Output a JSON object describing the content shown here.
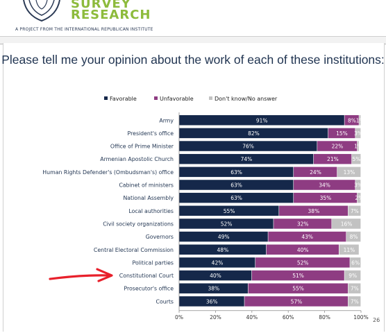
{
  "header": {
    "logo_line1": "SURVEY",
    "logo_line2": "RESEARCH",
    "subtitle": "A PROJECT FROM THE INTERNATIONAL REPUBLICAN INSTITUTE"
  },
  "page_number": "26",
  "colors": {
    "favorable": "#15284a",
    "unfavorable": "#8e3c82",
    "dont_know": "#c2c2c2",
    "arrow": "#e8202b",
    "title": "#1f3350",
    "logo": "#8dbb3c"
  },
  "chart_data": {
    "type": "bar",
    "orientation": "horizontal",
    "stacked": true,
    "title": "Please tell me your opinion about the work of each of these institutions:",
    "categories": [
      "Army",
      "President's office",
      "Office of Prime Minister",
      "Armenian Apostolic Church",
      "Human Rights Defender's (Ombudsman's) office",
      "Cabinet of ministers",
      "National Assembly",
      "Local authorities",
      "Civil society organizations",
      "Governors",
      "Central Electoral Commission",
      "Political parties",
      "Constitutional Court",
      "Prosecutor's office",
      "Courts"
    ],
    "series": [
      {
        "name": "Favorable",
        "color": "#15284a",
        "values": [
          91,
          82,
          76,
          74,
          63,
          63,
          63,
          55,
          52,
          49,
          48,
          42,
          40,
          38,
          36
        ]
      },
      {
        "name": "Unfavorable",
        "color": "#8e3c82",
        "values": [
          8,
          15,
          22,
          21,
          24,
          34,
          35,
          38,
          32,
          43,
          40,
          52,
          51,
          55,
          57
        ]
      },
      {
        "name": "Don't know/No answer",
        "color": "#c2c2c2",
        "values": [
          1,
          3,
          1,
          5,
          13,
          3,
          2,
          7,
          16,
          8,
          11,
          6,
          9,
          7,
          7
        ]
      }
    ],
    "value_format": "{v}%",
    "x_ticks": [
      "0%",
      "20%",
      "40%",
      "60%",
      "80%",
      "100%"
    ],
    "xlim": [
      0,
      100
    ],
    "grid": false,
    "legend_position": "top",
    "annotation": {
      "type": "arrow",
      "target_category": "Constitutional Court",
      "color": "#e8202b"
    }
  }
}
